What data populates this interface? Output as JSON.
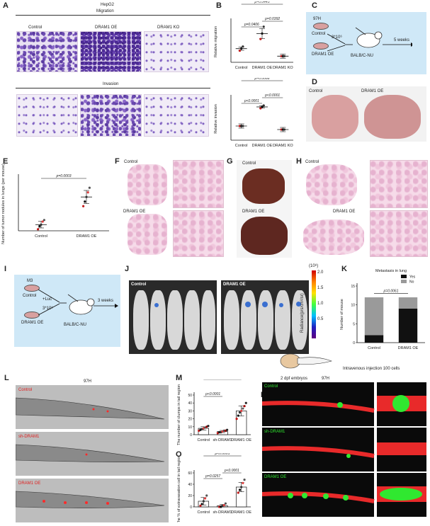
{
  "panels": {
    "A": {
      "letter": "A",
      "cell_line": "HepG2",
      "row1": "Migration",
      "row2": "Invasion",
      "cols": [
        "Control",
        "DRAM1 OE",
        "DRAM1 KO"
      ]
    },
    "B": {
      "letter": "B"
    },
    "C": {
      "letter": "C",
      "cell_line": "97H",
      "group1": "Control",
      "group2": "DRAM1 OE",
      "cells": "3*10⁶",
      "mouse": "BALB/C-NU",
      "time": "5 weeks"
    },
    "D": {
      "letter": "D",
      "left": "Control",
      "right": "DRAM1 OE"
    },
    "E": {
      "letter": "E"
    },
    "F": {
      "letter": "F",
      "top": "Control",
      "bottom": "DRAM1 OE"
    },
    "G": {
      "letter": "G",
      "top": "Control",
      "bottom": "DRAM1 OE"
    },
    "H": {
      "letter": "H",
      "top": "Control",
      "bottom": "DRAM1 OE"
    },
    "I": {
      "letter": "I",
      "cell_line": "M3",
      "group1": "Control",
      "group2": "DRAM1 OE",
      "luc": "+Luc",
      "cells": "3*10⁶",
      "mouse": "BALB/C-NU",
      "time": "3 weeks"
    },
    "J": {
      "letter": "J",
      "left": "Control",
      "right": "DRAM1 OE",
      "scale_exp": "(10⁸)",
      "scale_ticks": [
        "2.0",
        "1.5",
        "1.0",
        "0.5"
      ],
      "scale_label": "Radiance(p/s/cm²/sr)"
    },
    "K": {
      "letter": "K"
    },
    "L": {
      "letter": "L",
      "cell_line": "97H",
      "labels": [
        "Control",
        "sh-DRAM1",
        "DRAM1 OE"
      ]
    },
    "M": {
      "letter": "M"
    },
    "N": {
      "letter": "N",
      "embryo": "2 dpf embryos",
      "cell_line": "97H",
      "injection": "Intravenous injection 100 cells",
      "labels": [
        "Control",
        "sh-DRAM1",
        "DRAM1 OE"
      ]
    },
    "O": {
      "letter": "O"
    }
  },
  "chart_data": [
    {
      "id": "B-migration",
      "type": "scatter",
      "ylabel": "Relative migration",
      "categories": [
        "Control",
        "DRAM1 OE",
        "DRAM1 KO"
      ],
      "means": [
        1.0,
        2.1,
        0.45
      ],
      "points": [
        [
          0.85,
          1.0,
          1.15
        ],
        [
          1.7,
          2.1,
          2.6
        ],
        [
          0.45,
          0.45,
          0.45
        ]
      ],
      "sig": [
        {
          "pair": [
            0,
            1
          ],
          "label": "p=0.0406"
        },
        {
          "pair": [
            1,
            2
          ],
          "label": "p=0.0392"
        },
        {
          "pair": [
            0,
            2
          ],
          "label": "p=0.0445"
        }
      ],
      "ylim": [
        0,
        3
      ]
    },
    {
      "id": "B-invasion",
      "type": "scatter",
      "ylabel": "Relative invasion",
      "categories": [
        "Control",
        "DRAM1 OE",
        "DRAM1 KO"
      ],
      "means": [
        1.0,
        2.35,
        0.75
      ],
      "points": [
        [
          1.0,
          1.0,
          1.0
        ],
        [
          2.25,
          2.35,
          2.45
        ],
        [
          0.75,
          0.75,
          0.75
        ]
      ],
      "sig": [
        {
          "pair": [
            0,
            1
          ],
          "label": "p<0.0001"
        },
        {
          "pair": [
            1,
            2
          ],
          "label": "p<0.0001"
        },
        {
          "pair": [
            0,
            2
          ],
          "label": "p=0.0068"
        }
      ],
      "ylim": [
        0,
        3
      ]
    },
    {
      "id": "E",
      "type": "scatter",
      "ylabel": "Number of tumor nodules in lungs (per mouse)",
      "categories": [
        "Control",
        "DRAM1 OE"
      ],
      "means": [
        4,
        22
      ],
      "points": [
        [
          1,
          3,
          4,
          6,
          7
        ],
        [
          16,
          19,
          22,
          25,
          28
        ]
      ],
      "sig": [
        {
          "pair": [
            0,
            1
          ],
          "label": "p=0.0003"
        }
      ],
      "ylim": [
        0,
        35
      ]
    },
    {
      "id": "K",
      "type": "bar",
      "title": "Metastasis in lung",
      "ylabel": "Number of mouse",
      "categories": [
        "Control",
        "DRAM1 OE"
      ],
      "series": [
        {
          "name": "Yes",
          "values": [
            2,
            9
          ],
          "color": "#111111"
        },
        {
          "name": "No",
          "values": [
            10,
            3
          ],
          "color": "#9a9a9a"
        }
      ],
      "sig": [
        {
          "pair": [
            0,
            1
          ],
          "label": "p=0.0061"
        }
      ],
      "yticks": [
        "0",
        "5",
        "10",
        "15"
      ],
      "ylim": [
        0,
        15
      ]
    },
    {
      "id": "M",
      "type": "bar",
      "ylabel": "The number of clumps in tail region",
      "categories": [
        "Control",
        "sh-DRAM1",
        "DRAM1 OE"
      ],
      "means": [
        8,
        4,
        30
      ],
      "points": [
        [
          5,
          6,
          7,
          8,
          9,
          10,
          11
        ],
        [
          2,
          3,
          3,
          4,
          5,
          5,
          6
        ],
        [
          20,
          24,
          28,
          30,
          33,
          36,
          40
        ]
      ],
      "sig": [
        {
          "pair": [
            0,
            1
          ],
          "label": "p<0.0001"
        },
        {
          "pair": [
            0,
            2
          ],
          "label": "p<0.0001"
        }
      ],
      "yticks": [
        "0",
        "10",
        "20",
        "30",
        "40",
        "50"
      ],
      "ylim": [
        0,
        50
      ]
    },
    {
      "id": "O",
      "type": "bar",
      "ylabel": "The % of extravasation cell in tail region",
      "categories": [
        "Control",
        "sh-DRAM1",
        "DRAM1 OE"
      ],
      "means": [
        10,
        2,
        35
      ],
      "points": [
        [
          2,
          5,
          10,
          15,
          20
        ],
        [
          0,
          0,
          2,
          3,
          6
        ],
        [
          25,
          30,
          35,
          42,
          48
        ]
      ],
      "sig": [
        {
          "pair": [
            0,
            1
          ],
          "label": "p=0.0257"
        },
        {
          "pair": [
            1,
            2
          ],
          "label": "p<0.0001"
        },
        {
          "pair": [
            0,
            2
          ],
          "label": "p<0.0001"
        }
      ],
      "yticks": [
        "0",
        "20",
        "40",
        "60"
      ],
      "ylim": [
        0,
        60
      ]
    }
  ]
}
